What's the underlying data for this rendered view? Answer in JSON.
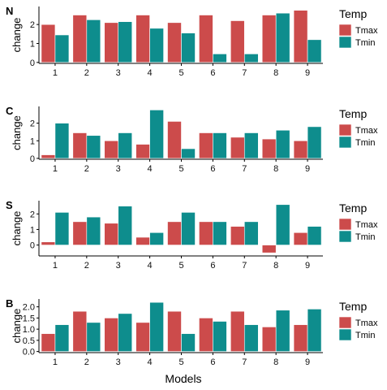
{
  "figure": {
    "xlabel": "Models"
  },
  "colors": {
    "Tmax": "#cc4b4b",
    "Tmin": "#0e8d8d",
    "axis": "#000000"
  },
  "chart_data": [
    {
      "type": "bar",
      "panel_label": "N",
      "ylabel": "change",
      "categories": [
        "1",
        "2",
        "3",
        "4",
        "5",
        "6",
        "7",
        "8",
        "9"
      ],
      "yticks": [
        0,
        1,
        2
      ],
      "ylim": [
        -0.05,
        2.95
      ],
      "legend": {
        "title": "Temp",
        "placement": "right"
      },
      "series": [
        {
          "name": "Tmax",
          "values": [
            2.0,
            2.5,
            2.1,
            2.5,
            2.1,
            2.5,
            2.2,
            2.5,
            2.75
          ]
        },
        {
          "name": "Tmin",
          "values": [
            1.45,
            2.25,
            2.15,
            1.8,
            1.55,
            0.45,
            0.45,
            2.6,
            1.2
          ]
        }
      ]
    },
    {
      "type": "bar",
      "panel_label": "C",
      "ylabel": "change",
      "categories": [
        "1",
        "2",
        "3",
        "4",
        "5",
        "6",
        "7",
        "8",
        "9"
      ],
      "yticks": [
        0,
        1,
        2
      ],
      "ylim": [
        -0.05,
        2.95
      ],
      "legend": {
        "title": "Temp",
        "placement": "right"
      },
      "series": [
        {
          "name": "Tmax",
          "values": [
            0.2,
            1.45,
            1.0,
            0.8,
            2.1,
            1.45,
            1.2,
            1.1,
            1.0
          ]
        },
        {
          "name": "Tmin",
          "values": [
            2.0,
            1.3,
            1.45,
            2.75,
            0.55,
            1.45,
            1.45,
            1.6,
            1.8
          ]
        }
      ]
    },
    {
      "type": "bar",
      "panel_label": "S",
      "ylabel": "change",
      "categories": [
        "1",
        "2",
        "3",
        "4",
        "5",
        "6",
        "7",
        "8",
        "9"
      ],
      "yticks": [
        0,
        1,
        2
      ],
      "ylim": [
        -0.7,
        2.85
      ],
      "legend": {
        "title": "Temp",
        "placement": "right"
      },
      "series": [
        {
          "name": "Tmax",
          "values": [
            0.2,
            1.5,
            1.4,
            0.5,
            1.5,
            1.5,
            1.2,
            -0.5,
            0.8
          ]
        },
        {
          "name": "Tmin",
          "values": [
            2.1,
            1.8,
            2.5,
            0.8,
            2.1,
            1.5,
            1.5,
            2.6,
            1.2
          ]
        }
      ]
    },
    {
      "type": "bar",
      "panel_label": "B",
      "ylabel": "change",
      "categories": [
        "1",
        "2",
        "3",
        "4",
        "5",
        "6",
        "7",
        "8",
        "9"
      ],
      "yticks": [
        0.0,
        0.5,
        1.0,
        1.5,
        2.0
      ],
      "ytick_labels": [
        "0.0",
        "0.5",
        "1.0",
        "1.5",
        "2.0"
      ],
      "ylim": [
        -0.05,
        2.35
      ],
      "legend": {
        "title": "Temp",
        "placement": "right"
      },
      "series": [
        {
          "name": "Tmax",
          "values": [
            0.8,
            1.8,
            1.5,
            1.3,
            1.8,
            1.5,
            1.8,
            1.1,
            1.2
          ]
        },
        {
          "name": "Tmin",
          "values": [
            1.2,
            1.3,
            1.7,
            2.2,
            0.8,
            1.35,
            1.2,
            1.85,
            1.9
          ]
        }
      ]
    }
  ]
}
